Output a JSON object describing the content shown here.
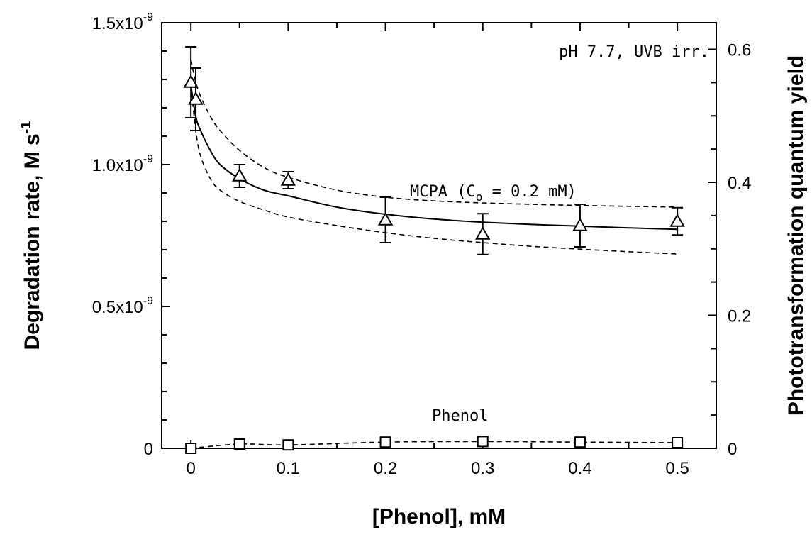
{
  "chart_data": {
    "type": "scatter",
    "xlabel": "[Phenol], mM",
    "ylabel": "Degradation rate, M s",
    "ylabel_sup": "-1",
    "y2label": "Phototransformation quantum yield",
    "xlim": [
      -0.03,
      0.54
    ],
    "ylim": [
      0,
      1.5e-09
    ],
    "y2lim": [
      0,
      0.64
    ],
    "x_ticks": [
      0,
      0.1,
      0.2,
      0.3,
      0.4,
      0.5
    ],
    "x_tick_labels": [
      "0",
      "0.1",
      "0.2",
      "0.3",
      "0.4",
      "0.5"
    ],
    "y_ticks": [
      0,
      5e-10,
      1e-09,
      1.5e-09
    ],
    "y_tick_labels": [
      {
        "base": "0",
        "exp": ""
      },
      {
        "base": "0.5x10",
        "exp": "-9"
      },
      {
        "base": "1.0x10",
        "exp": "-9"
      },
      {
        "base": "1.5x10",
        "exp": "-9"
      }
    ],
    "y2_ticks": [
      0,
      0.2,
      0.4,
      0.6
    ],
    "y2_tick_labels": [
      "0",
      "0.2",
      "0.4",
      "0.6"
    ],
    "annotations": {
      "conditions": "pH 7.7, UVB irr.",
      "mcpa_label_pre": "MCPA (C",
      "mcpa_label_sub": "o",
      "mcpa_label_post": " = 0.2 mM)",
      "phenol_label": "Phenol"
    },
    "series": [
      {
        "marker": "triangle",
        "x": [
          0,
          0.005,
          0.05,
          0.1,
          0.2,
          0.3,
          0.4,
          0.5
        ],
        "y": [
          1.29e-09,
          1.23e-09,
          9.6e-10,
          9.45e-10,
          8.05e-10,
          7.55e-10,
          7.85e-10,
          8e-10
        ],
        "err": [
          1.25e-10,
          1.1e-10,
          4e-11,
          3e-11,
          8e-11,
          7.2e-11,
          7.5e-11,
          4.8e-11
        ]
      },
      {
        "marker": "square",
        "x": [
          0,
          0.05,
          0.1,
          0.2,
          0.3,
          0.4,
          0.5
        ],
        "y": [
          0,
          1.5e-11,
          1.2e-11,
          2.2e-11,
          2.4e-11,
          2.2e-11,
          2e-11
        ]
      }
    ],
    "fit_lines": [
      {
        "style": "solid",
        "x": [
          0,
          0.005,
          0.01,
          0.02,
          0.03,
          0.05,
          0.075,
          0.1,
          0.15,
          0.2,
          0.25,
          0.3,
          0.35,
          0.4,
          0.45,
          0.5
        ],
        "y": [
          1.28e-09,
          1.17e-09,
          1.12e-09,
          1.05e-09,
          1e-09,
          9.5e-10,
          9.1e-10,
          8.9e-10,
          8.5e-10,
          8.25e-10,
          8.08e-10,
          7.97e-10,
          7.89e-10,
          7.83e-10,
          7.77e-10,
          7.72e-10
        ]
      },
      {
        "style": "dashed",
        "x": [
          0,
          0.005,
          0.01,
          0.02,
          0.03,
          0.05,
          0.075,
          0.1,
          0.15,
          0.2,
          0.25,
          0.3,
          0.35,
          0.4,
          0.45,
          0.5
        ],
        "y": [
          1.37e-09,
          1.29e-09,
          1.24e-09,
          1.17e-09,
          1.12e-09,
          1.05e-09,
          9.9e-10,
          9.55e-10,
          9.1e-10,
          8.85e-10,
          8.72e-10,
          8.65e-10,
          8.6e-10,
          8.56e-10,
          8.53e-10,
          8.5e-10
        ]
      },
      {
        "style": "dashed",
        "x": [
          0,
          0.005,
          0.01,
          0.02,
          0.03,
          0.05,
          0.075,
          0.1,
          0.15,
          0.2,
          0.25,
          0.3,
          0.35,
          0.4,
          0.45,
          0.5
        ],
        "y": [
          1.28e-09,
          1.12e-09,
          1.03e-09,
          9.5e-10,
          9.1e-10,
          8.7e-10,
          8.4e-10,
          8.15e-10,
          7.85e-10,
          7.6e-10,
          7.4e-10,
          7.25e-10,
          7.12e-10,
          7.02e-10,
          6.93e-10,
          6.85e-10
        ]
      },
      {
        "style": "dashed",
        "x": [
          0,
          0.05,
          0.1,
          0.2,
          0.3,
          0.4,
          0.5
        ],
        "y": [
          0,
          1.5e-11,
          1.2e-11,
          2.2e-11,
          2.4e-11,
          2.2e-11,
          2e-11
        ]
      }
    ]
  }
}
